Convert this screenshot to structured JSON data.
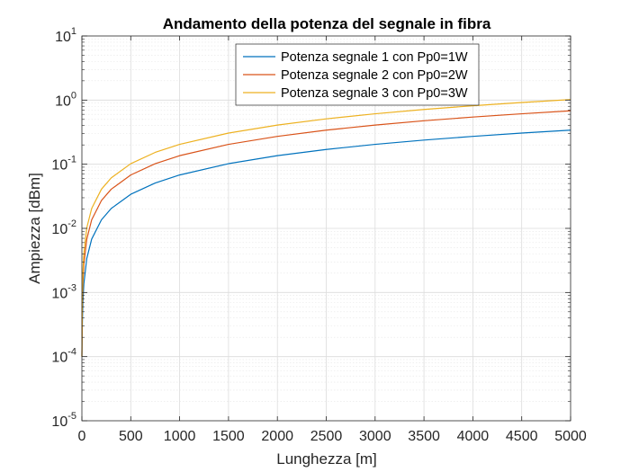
{
  "chart_data": {
    "type": "line",
    "title": "Andamento della potenza del segnale in fibra",
    "xlabel": "Lunghezza [m]",
    "ylabel": "Ampiezza [dBm]",
    "xlim": [
      0,
      5000
    ],
    "ylim": [
      1e-05,
      10
    ],
    "yscale": "log",
    "grid": true,
    "minor_grid": true,
    "legend_position": "top-center",
    "x_ticks": [
      "0",
      "500",
      "1000",
      "1500",
      "2000",
      "2500",
      "3000",
      "3500",
      "4000",
      "4500",
      "5000"
    ],
    "y_ticks": [
      {
        "base": "10",
        "exp": "-5"
      },
      {
        "base": "10",
        "exp": "-4"
      },
      {
        "base": "10",
        "exp": "-3"
      },
      {
        "base": "10",
        "exp": "-2"
      },
      {
        "base": "10",
        "exp": "-1"
      },
      {
        "base": "10",
        "exp": "0"
      },
      {
        "base": "10",
        "exp": "1"
      }
    ],
    "x": [
      0,
      5,
      10,
      20,
      50,
      100,
      200,
      300,
      500,
      750,
      1000,
      1500,
      2000,
      2500,
      3000,
      3500,
      4000,
      4500,
      5000
    ],
    "series": [
      {
        "name": "Potenza segnale 1 con Pp0=1W",
        "color": "#0072BD",
        "values": [
          0.0001,
          0.00034,
          0.00068,
          0.00136,
          0.0034,
          0.0068,
          0.0136,
          0.0204,
          0.034,
          0.051,
          0.068,
          0.102,
          0.136,
          0.17,
          0.204,
          0.238,
          0.272,
          0.306,
          0.34
        ]
      },
      {
        "name": "Potenza segnale 2 con Pp0=2W",
        "color": "#D95319",
        "values": [
          0.0001,
          0.00068,
          0.00136,
          0.00272,
          0.0068,
          0.0136,
          0.0272,
          0.0408,
          0.068,
          0.102,
          0.136,
          0.204,
          0.272,
          0.34,
          0.408,
          0.476,
          0.544,
          0.612,
          0.68
        ]
      },
      {
        "name": "Potenza segnale 3 con Pp0=3W",
        "color": "#EDB120",
        "values": [
          0.0001,
          0.00102,
          0.00204,
          0.00408,
          0.0102,
          0.0204,
          0.0408,
          0.0612,
          0.102,
          0.153,
          0.204,
          0.306,
          0.408,
          0.51,
          0.612,
          0.714,
          0.816,
          0.918,
          1.02
        ]
      }
    ]
  }
}
